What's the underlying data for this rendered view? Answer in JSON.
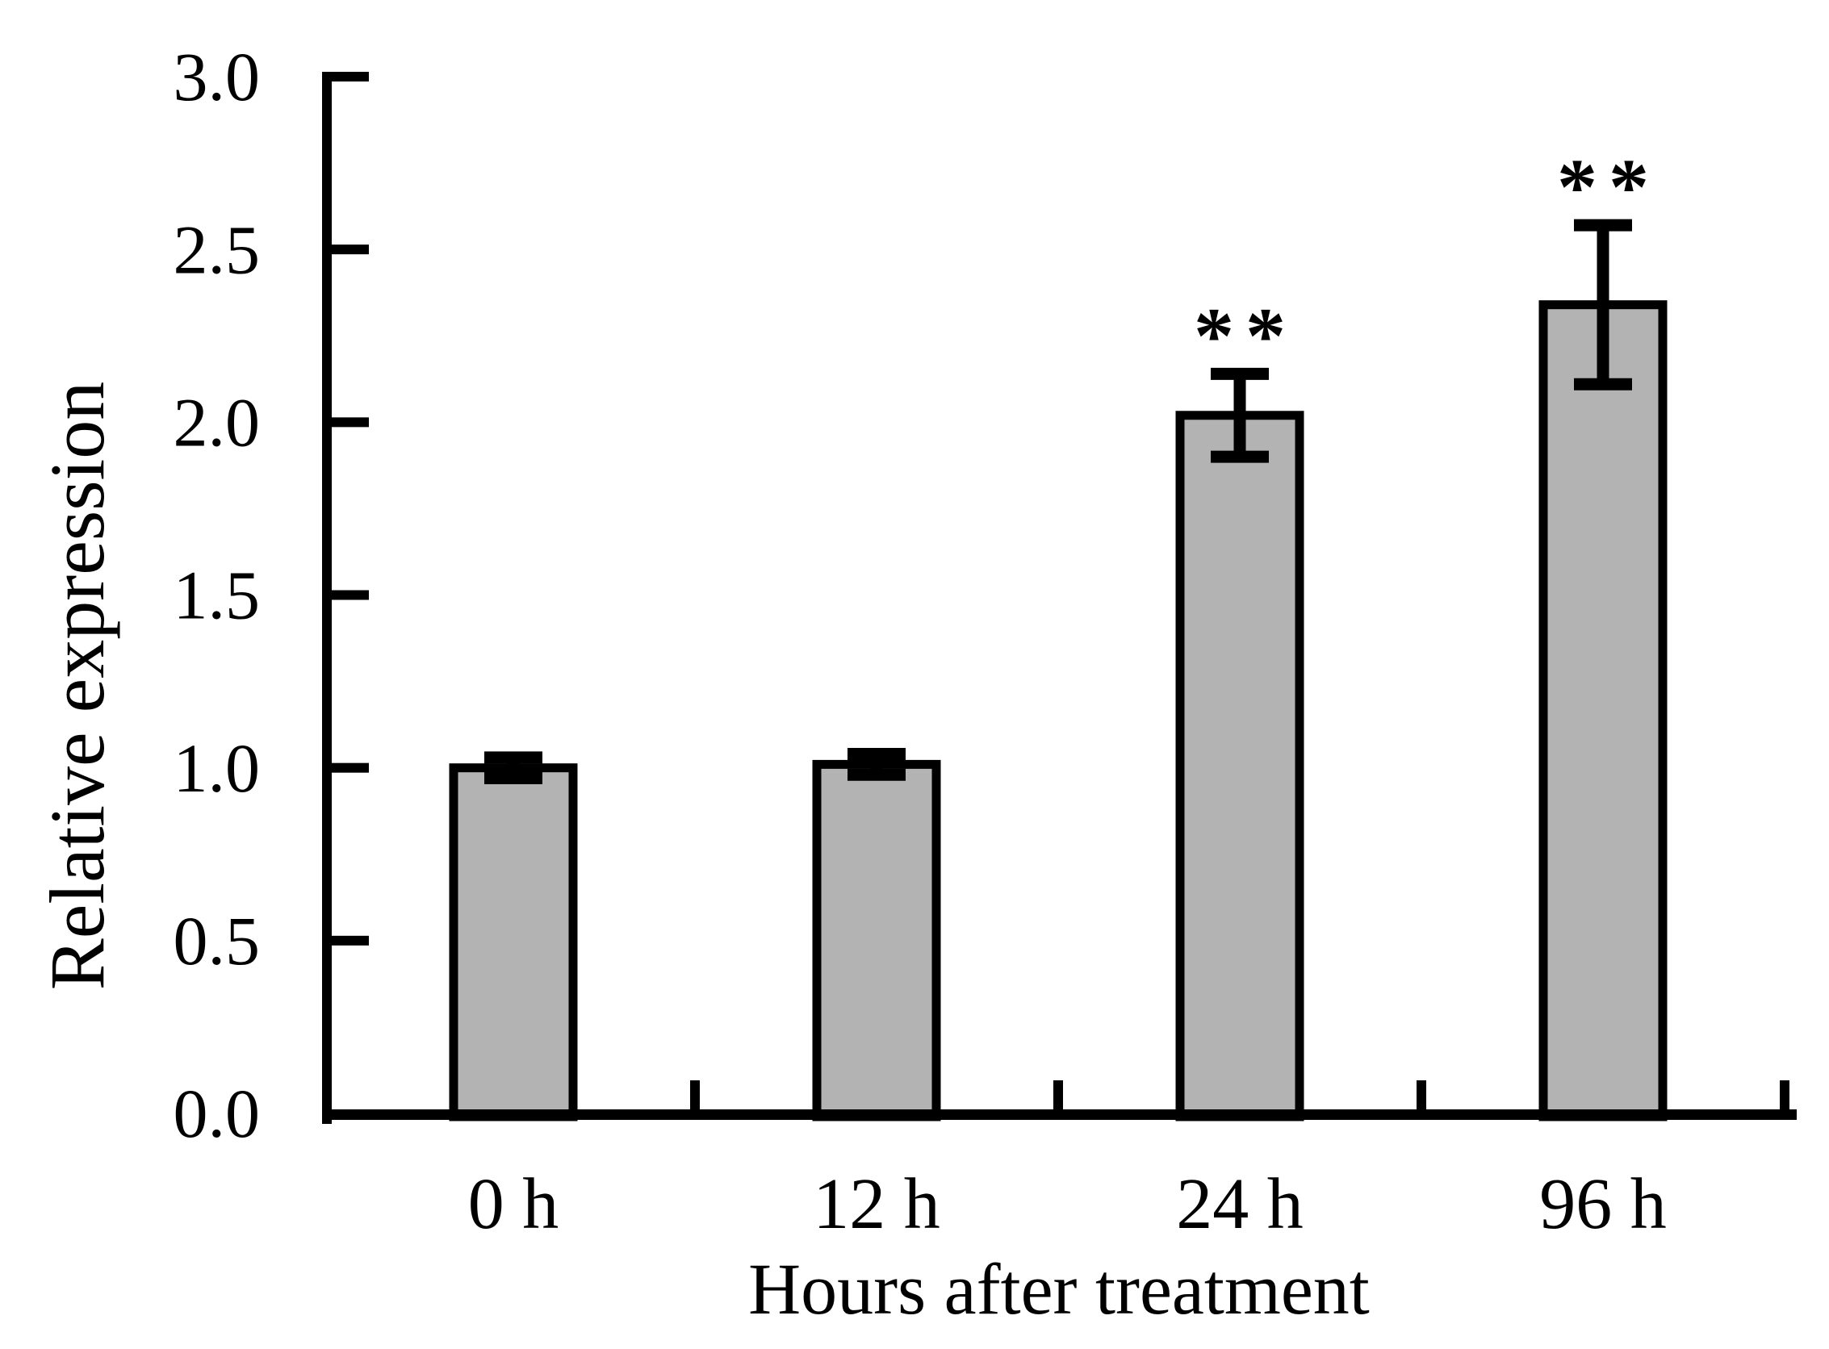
{
  "chart_data": {
    "type": "bar",
    "xlabel": "Hours after treatment",
    "ylabel": "Relative expression",
    "categories": [
      "0 h",
      "12 h",
      "24 h",
      "96 h"
    ],
    "values": [
      1.0,
      1.01,
      2.02,
      2.34
    ],
    "error_bars": [
      0.03,
      0.03,
      0.12,
      0.23
    ],
    "annotations": [
      "",
      "",
      "**",
      "**"
    ],
    "ylim": [
      0.0,
      3.0
    ],
    "ytick_labels": [
      "0.0",
      "0.5",
      "1.0",
      "1.5",
      "2.0",
      "2.5",
      "3.0"
    ],
    "grid": false,
    "legend": false,
    "bar_fill_color": "#b3b3b3",
    "bar_border_color": "#000000",
    "axis_color": "#000000"
  }
}
